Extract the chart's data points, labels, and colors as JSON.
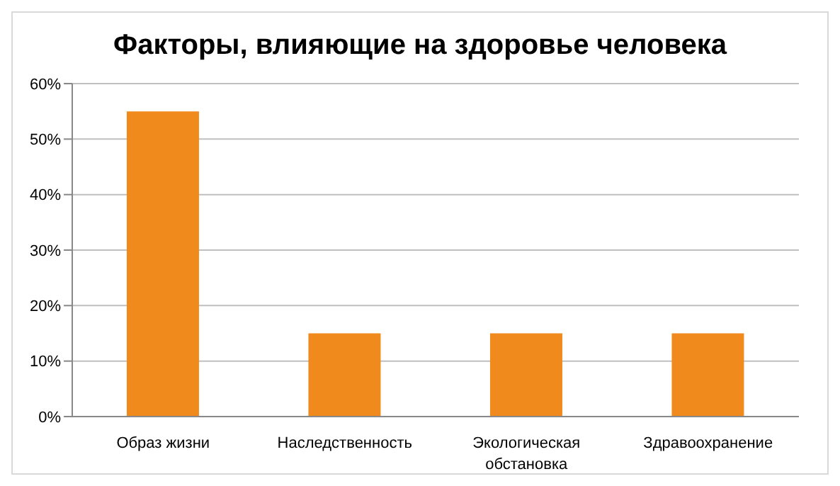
{
  "chart_data": {
    "type": "bar",
    "title": "Факторы, влияющие на здоровье человека",
    "categories": [
      "Образ жизни",
      "Наследственность",
      "Экологическая обстановка",
      "Здравоохранение"
    ],
    "values": [
      55,
      15,
      15,
      15
    ],
    "color": "#f08a1c",
    "ylim": [
      0,
      60
    ],
    "yticks": [
      {
        "value": 0,
        "label": "0%"
      },
      {
        "value": 10,
        "label": "10%"
      },
      {
        "value": 20,
        "label": "20%"
      },
      {
        "value": 30,
        "label": "30%"
      },
      {
        "value": 40,
        "label": "40%"
      },
      {
        "value": 50,
        "label": "50%"
      },
      {
        "value": 60,
        "label": "60%"
      }
    ],
    "grid": "y",
    "legend": false
  }
}
